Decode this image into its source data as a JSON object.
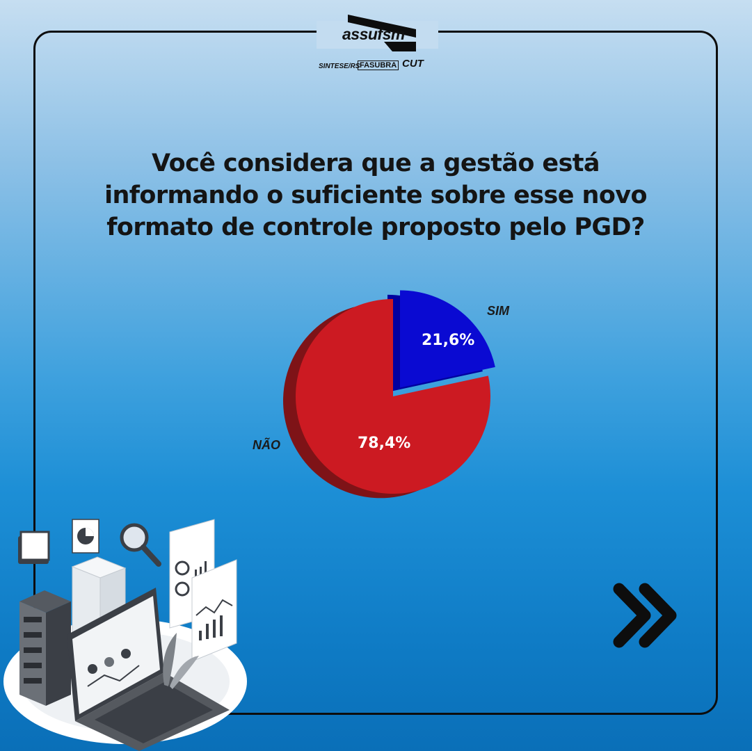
{
  "brand": {
    "name": "assufsm",
    "partners": [
      "SINTESE/RS",
      "FASUBRA",
      "CUT"
    ]
  },
  "question": "Você considera que a gestão está informando o suficiente sobre esse novo formato de controle proposto pelo PGD?",
  "chart_data": {
    "type": "pie",
    "title": "Você considera que a gestão está informando o suficiente sobre esse novo formato de controle proposto pelo PGD?",
    "slices": [
      {
        "label": "SIM",
        "value": 21.6,
        "display": "21,6%",
        "color": "#0a0ad2",
        "side_color": "#0000a0",
        "exploded": true
      },
      {
        "label": "NÃO",
        "value": 78.4,
        "display": "78,4%",
        "color": "#cc1a22",
        "side_color": "#7e1317",
        "exploded": false
      }
    ],
    "legend": "labels-on-slices"
  },
  "colors": {
    "frame": "#0d0d0d",
    "arrow": "#0d0d0d"
  },
  "icons": {
    "next": "double-chevron-right-icon",
    "illustration": "server-laptop-analytics-illustration"
  }
}
